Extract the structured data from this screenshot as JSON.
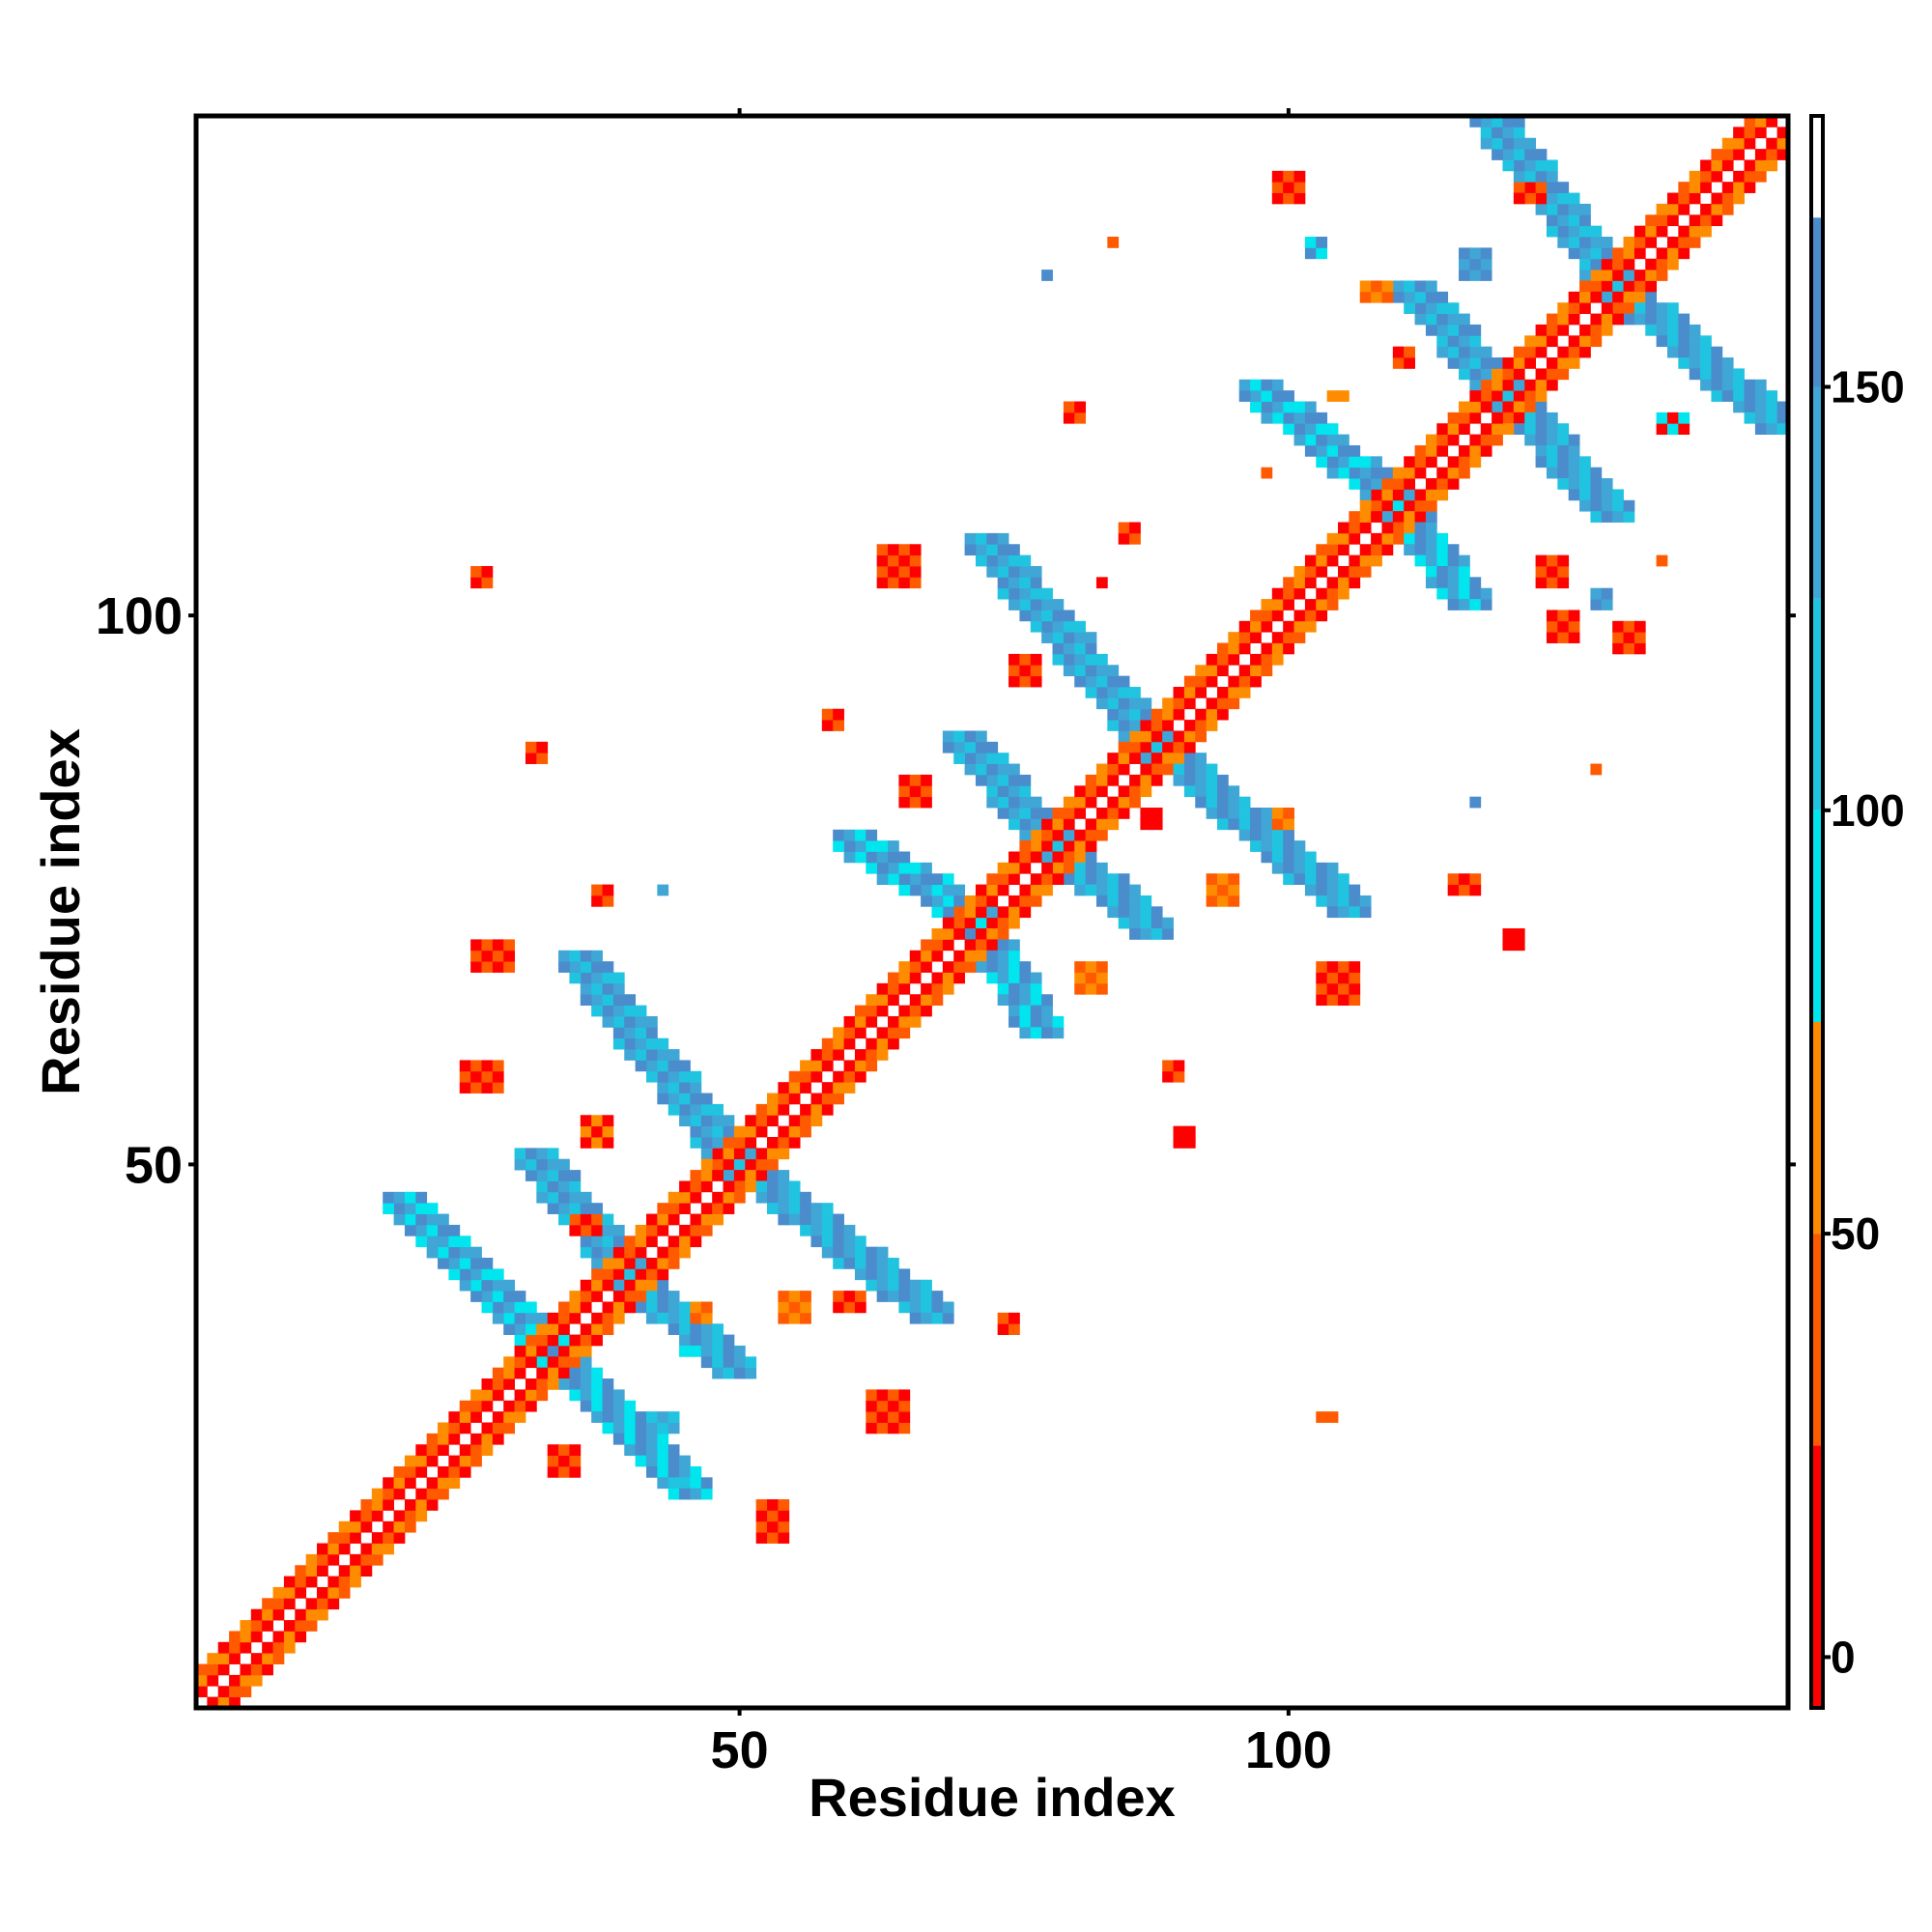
{
  "chart_data": {
    "type": "heatmap",
    "title": "",
    "xlabel": "Residue index",
    "ylabel": "Residue index",
    "xlim": [
      0.5,
      145.5
    ],
    "ylim": [
      0.5,
      145.5
    ],
    "x_ticks": [
      {
        "value": 50,
        "label": "50"
      },
      {
        "value": 100,
        "label": "100"
      }
    ],
    "y_ticks": [
      {
        "value": 50,
        "label": "50"
      },
      {
        "value": 100,
        "label": "100"
      }
    ],
    "colorbar": {
      "range": [
        -6,
        182
      ],
      "ticks": [
        {
          "value": 0,
          "label": "0"
        },
        {
          "value": 50,
          "label": "50"
        },
        {
          "value": 100,
          "label": "100"
        },
        {
          "value": 150,
          "label": "150"
        }
      ],
      "stops": [
        {
          "from": -6,
          "to": 25,
          "color": "#ff0000"
        },
        {
          "from": 25,
          "to": 50,
          "color": "#ff5a00"
        },
        {
          "from": 50,
          "to": 75,
          "color": "#ff8c00"
        },
        {
          "from": 75,
          "to": 100,
          "color": "#00e5ee"
        },
        {
          "from": 100,
          "to": 125,
          "color": "#21c4e0"
        },
        {
          "from": 125,
          "to": 150,
          "color": "#3fa6d6"
        },
        {
          "from": 150,
          "to": 170,
          "color": "#4a8ccc"
        },
        {
          "from": 170,
          "to": 182,
          "color": "#ffffff"
        }
      ]
    },
    "palette": {
      "red": "#ff0000",
      "dark_orange": "#ff5a00",
      "orange": "#ff8c00",
      "cyan": "#00e5ee",
      "sky": "#21c4e0",
      "blue": "#3fa6d6",
      "steel": "#4a8ccc"
    },
    "features": [
      {
        "kind": "diag",
        "start": [
          1,
          1
        ],
        "end": [
          145,
          145
        ],
        "offsets": [
          -3,
          -2,
          -1,
          1,
          2,
          3
        ],
        "colors": [
          "red",
          "dark_orange",
          "orange"
        ]
      },
      {
        "kind": "band",
        "start": [
          33,
          33
        ],
        "end": [
          46,
          20
        ],
        "width": 4,
        "colors": [
          "blue",
          "cyan",
          "steel"
        ]
      },
      {
        "kind": "band",
        "start": [
          33,
          33
        ],
        "end": [
          20,
          46
        ],
        "width": 4,
        "colors": [
          "blue",
          "cyan",
          "steel"
        ]
      },
      {
        "kind": "band",
        "start": [
          40,
          40
        ],
        "end": [
          50,
          31
        ],
        "width": 4,
        "colors": [
          "steel",
          "blue",
          "sky"
        ]
      },
      {
        "kind": "band",
        "start": [
          40,
          40
        ],
        "end": [
          32,
          50
        ],
        "width": 4,
        "colors": [
          "steel",
          "blue",
          "sky"
        ]
      },
      {
        "kind": "band",
        "start": [
          50,
          50
        ],
        "end": [
          68,
          36
        ],
        "width": 4,
        "colors": [
          "steel",
          "blue",
          "sky"
        ]
      },
      {
        "kind": "band",
        "start": [
          50,
          50
        ],
        "end": [
          36,
          68
        ],
        "width": 4,
        "colors": [
          "steel",
          "blue",
          "sky"
        ]
      },
      {
        "kind": "band",
        "start": [
          72,
          72
        ],
        "end": [
          78,
          62
        ],
        "width": 4,
        "colors": [
          "steel",
          "blue",
          "cyan"
        ]
      },
      {
        "kind": "band",
        "start": [
          72,
          72
        ],
        "end": [
          61,
          79
        ],
        "width": 4,
        "colors": [
          "steel",
          "blue",
          "cyan"
        ]
      },
      {
        "kind": "band",
        "start": [
          79,
          79
        ],
        "end": [
          88,
          71
        ],
        "width": 4,
        "colors": [
          "steel",
          "blue",
          "sky"
        ]
      },
      {
        "kind": "band",
        "start": [
          79,
          79
        ],
        "end": [
          71,
          88
        ],
        "width": 4,
        "colors": [
          "steel",
          "blue",
          "sky"
        ]
      },
      {
        "kind": "band",
        "start": [
          88,
          88
        ],
        "end": [
          106,
          73
        ],
        "width": 4,
        "colors": [
          "steel",
          "blue",
          "sky"
        ]
      },
      {
        "kind": "band",
        "start": [
          88,
          88
        ],
        "end": [
          73,
          106
        ],
        "width": 4,
        "colors": [
          "steel",
          "blue",
          "sky"
        ]
      },
      {
        "kind": "band",
        "start": [
          110,
          110
        ],
        "end": [
          117,
          101
        ],
        "width": 4,
        "colors": [
          "steel",
          "blue",
          "cyan"
        ]
      },
      {
        "kind": "band",
        "start": [
          110,
          110
        ],
        "end": [
          98,
          120
        ],
        "width": 4,
        "colors": [
          "steel",
          "blue",
          "cyan"
        ]
      },
      {
        "kind": "band",
        "start": [
          120,
          120
        ],
        "end": [
          130,
          109
        ],
        "width": 4,
        "colors": [
          "steel",
          "blue",
          "sky"
        ]
      },
      {
        "kind": "band",
        "start": [
          120,
          120
        ],
        "end": [
          112,
          129
        ],
        "width": 4,
        "colors": [
          "steel",
          "blue",
          "sky"
        ]
      },
      {
        "kind": "band",
        "start": [
          130,
          130
        ],
        "end": [
          145,
          117
        ],
        "width": 4,
        "colors": [
          "steel",
          "blue",
          "sky"
        ]
      },
      {
        "kind": "band",
        "start": [
          130,
          130
        ],
        "end": [
          119,
          145
        ],
        "width": 4,
        "colors": [
          "steel",
          "blue",
          "sky"
        ]
      },
      {
        "kind": "blob",
        "center": [
          27,
          58
        ],
        "size": [
          4,
          3
        ],
        "colors": [
          "red",
          "dark_orange"
        ]
      },
      {
        "kind": "blob",
        "center": [
          28,
          69
        ],
        "size": [
          4,
          3
        ],
        "colors": [
          "red",
          "dark_orange"
        ]
      },
      {
        "kind": "blob",
        "center": [
          27,
          104
        ],
        "size": [
          2,
          2
        ],
        "colors": [
          "red",
          "dark_orange"
        ]
      },
      {
        "kind": "blob",
        "center": [
          37,
          53
        ],
        "size": [
          3,
          3
        ],
        "colors": [
          "red",
          "orange"
        ]
      },
      {
        "kind": "blob",
        "center": [
          38,
          75
        ],
        "size": [
          2,
          2
        ],
        "colors": [
          "red",
          "dark_orange"
        ]
      },
      {
        "kind": "blob",
        "center": [
          43,
          75
        ],
        "size": [
          1,
          1
        ],
        "colors": [
          "blue"
        ]
      },
      {
        "kind": "blob",
        "center": [
          53,
          18
        ],
        "size": [
          3,
          4
        ],
        "colors": [
          "red",
          "dark_orange"
        ]
      },
      {
        "kind": "blob",
        "center": [
          55,
          37
        ],
        "size": [
          3,
          3
        ],
        "colors": [
          "dark_orange",
          "orange"
        ]
      },
      {
        "kind": "blob",
        "center": [
          60,
          38
        ],
        "size": [
          3,
          2
        ],
        "colors": [
          "red",
          "dark_orange"
        ]
      },
      {
        "kind": "blob",
        "center": [
          64,
          28
        ],
        "size": [
          4,
          4
        ],
        "colors": [
          "red",
          "dark_orange"
        ]
      },
      {
        "kind": "blob",
        "center": [
          65,
          105
        ],
        "size": [
          4,
          4
        ],
        "colors": [
          "red",
          "dark_orange"
        ]
      },
      {
        "kind": "blob",
        "center": [
          59,
          91
        ],
        "size": [
          2,
          2
        ],
        "colors": [
          "red",
          "dark_orange"
        ]
      },
      {
        "kind": "blob",
        "center": [
          66,
          84
        ],
        "size": [
          3,
          3
        ],
        "colors": [
          "red",
          "dark_orange"
        ]
      },
      {
        "kind": "blob",
        "center": [
          75,
          36
        ],
        "size": [
          2,
          2
        ],
        "colors": [
          "red",
          "dark_orange"
        ]
      },
      {
        "kind": "blob",
        "center": [
          76,
          95
        ],
        "size": [
          3,
          3
        ],
        "colors": [
          "red",
          "dark_orange"
        ]
      },
      {
        "kind": "blob",
        "center": [
          82,
          67
        ],
        "size": [
          3,
          3
        ],
        "colors": [
          "dark_orange",
          "orange"
        ]
      },
      {
        "kind": "blob",
        "center": [
          83,
          103
        ],
        "size": [
          1,
          1
        ],
        "colors": [
          "red"
        ]
      },
      {
        "kind": "blob",
        "center": [
          81,
          119
        ],
        "size": [
          2,
          2
        ],
        "colors": [
          "red",
          "dark_orange"
        ]
      },
      {
        "kind": "blob",
        "center": [
          78,
          131
        ],
        "size": [
          1,
          1
        ],
        "colors": [
          "steel"
        ]
      },
      {
        "kind": "blob",
        "center": [
          84,
          134
        ],
        "size": [
          1,
          1
        ],
        "colors": [
          "dark_orange"
        ]
      },
      {
        "kind": "blob",
        "center": [
          90,
          59
        ],
        "size": [
          2,
          2
        ],
        "colors": [
          "red",
          "dark_orange"
        ]
      },
      {
        "kind": "blob",
        "center": [
          94,
          75
        ],
        "size": [
          3,
          3
        ],
        "colors": [
          "dark_orange",
          "orange"
        ]
      },
      {
        "kind": "blob",
        "center": [
          100,
          82
        ],
        "size": [
          2,
          2
        ],
        "colors": [
          "dark_orange",
          "orange"
        ]
      },
      {
        "kind": "blob",
        "center": [
          105,
          67
        ],
        "size": [
          4,
          4
        ],
        "colors": [
          "red",
          "dark_orange"
        ]
      },
      {
        "kind": "blob",
        "center": [
          104,
          27
        ],
        "size": [
          2,
          1
        ],
        "colors": [
          "dark_orange"
        ]
      },
      {
        "kind": "blob",
        "center": [
          100,
          139
        ],
        "size": [
          3,
          3
        ],
        "colors": [
          "red",
          "dark_orange"
        ]
      },
      {
        "kind": "blob",
        "center": [
          103,
          134
        ],
        "size": [
          2,
          2
        ],
        "colors": [
          "steel",
          "cyan"
        ]
      },
      {
        "kind": "blob",
        "center": [
          108,
          130
        ],
        "size": [
          3,
          2
        ],
        "colors": [
          "dark_orange",
          "orange"
        ]
      },
      {
        "kind": "blob",
        "center": [
          117,
          132
        ],
        "size": [
          3,
          3
        ],
        "colors": [
          "steel",
          "blue"
        ]
      },
      {
        "kind": "blob",
        "center": [
          116,
          76
        ],
        "size": [
          3,
          2
        ],
        "colors": [
          "red",
          "dark_orange"
        ]
      },
      {
        "kind": "blob",
        "center": [
          117,
          83
        ],
        "size": [
          1,
          1
        ],
        "colors": [
          "steel"
        ]
      },
      {
        "kind": "blob",
        "center": [
          121,
          71
        ],
        "size": [
          2,
          2
        ],
        "colors": [
          "red"
        ]
      },
      {
        "kind": "blob",
        "center": [
          124,
          104
        ],
        "size": [
          3,
          3
        ],
        "colors": [
          "red",
          "dark_orange"
        ]
      },
      {
        "kind": "blob",
        "center": [
          125,
          99
        ],
        "size": [
          3,
          3
        ],
        "colors": [
          "red",
          "dark_orange"
        ]
      },
      {
        "kind": "blob",
        "center": [
          122,
          139
        ],
        "size": [
          3,
          2
        ],
        "colors": [
          "red",
          "dark_orange"
        ]
      },
      {
        "kind": "blob",
        "center": [
          128,
          86
        ],
        "size": [
          1,
          1
        ],
        "colors": [
          "dark_orange"
        ]
      },
      {
        "kind": "blob",
        "center": [
          129,
          102
        ],
        "size": [
          2,
          2
        ],
        "colors": [
          "steel",
          "blue"
        ]
      },
      {
        "kind": "blob",
        "center": [
          131,
          98
        ],
        "size": [
          3,
          3
        ],
        "colors": [
          "red",
          "dark_orange"
        ]
      },
      {
        "kind": "blob",
        "center": [
          134,
          105
        ],
        "size": [
          1,
          1
        ],
        "colors": [
          "dark_orange"
        ]
      },
      {
        "kind": "blob",
        "center": [
          135,
          118
        ],
        "size": [
          3,
          2
        ],
        "colors": [
          "red",
          "cyan"
        ]
      },
      {
        "kind": "blob",
        "center": [
          36,
          45
        ],
        "size": [
          3,
          2
        ],
        "colors": [
          "red",
          "dark_orange"
        ]
      },
      {
        "kind": "blob",
        "center": [
          32,
          88
        ],
        "size": [
          2,
          2
        ],
        "colors": [
          "red",
          "dark_orange"
        ]
      },
      {
        "kind": "blob",
        "center": [
          47,
          37
        ],
        "size": [
          2,
          2
        ],
        "colors": [
          "dark_orange",
          "orange"
        ]
      },
      {
        "kind": "blob",
        "center": [
          43,
          27
        ],
        "size": [
          3,
          2
        ],
        "colors": [
          "blue",
          "sky"
        ]
      },
      {
        "kind": "blob",
        "center": [
          46,
          33
        ],
        "size": [
          2,
          1
        ],
        "colors": [
          "cyan"
        ]
      },
      {
        "kind": "blob",
        "center": [
          45,
          21
        ],
        "size": [
          2,
          1
        ],
        "colors": [
          "sky"
        ]
      },
      {
        "kind": "blob",
        "center": [
          88,
          82
        ],
        "size": [
          2,
          2
        ],
        "colors": [
          "red"
        ]
      },
      {
        "kind": "blob",
        "center": [
          86,
          108
        ],
        "size": [
          2,
          2
        ],
        "colors": [
          "red",
          "dark_orange"
        ]
      },
      {
        "kind": "blob",
        "center": [
          22,
          44
        ],
        "size": [
          2,
          2
        ],
        "colors": [
          "cyan",
          "blue"
        ]
      },
      {
        "kind": "blob",
        "center": [
          34,
          23
        ],
        "size": [
          3,
          3
        ],
        "colors": [
          "red",
          "dark_orange"
        ]
      },
      {
        "kind": "blob",
        "center": [
          91,
          53
        ],
        "size": [
          2,
          2
        ],
        "colors": [
          "red"
        ]
      },
      {
        "kind": "blob",
        "center": [
          98,
          113
        ],
        "size": [
          1,
          1
        ],
        "colors": [
          "dark_orange"
        ]
      },
      {
        "kind": "blob",
        "center": [
          111,
          124
        ],
        "size": [
          2,
          2
        ],
        "colors": [
          "dark_orange",
          "red"
        ]
      },
      {
        "kind": "blob",
        "center": [
          105,
          120
        ],
        "size": [
          2,
          1
        ],
        "colors": [
          "orange"
        ]
      }
    ]
  }
}
